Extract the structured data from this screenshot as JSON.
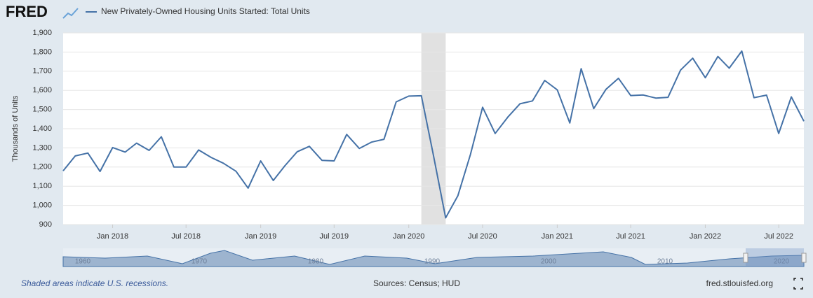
{
  "header": {
    "logo": "FRED"
  },
  "footer": {
    "note": "Shaded areas indicate U.S. recessions.",
    "sources": "Sources: Census; HUD",
    "site": "fred.stlouisfed.org"
  },
  "navigator": {
    "labels": [
      "1960",
      "1970",
      "1980",
      "1990",
      "2000",
      "2010",
      "2020"
    ]
  },
  "chart_data": {
    "type": "line",
    "ylabel": "Thousands of Units",
    "series": [
      {
        "name": "New Privately-Owned Housing Units Started: Total Units",
        "color": "#4572a7",
        "values": [
          1180,
          1258,
          1273,
          1177,
          1302,
          1278,
          1325,
          1287,
          1358,
          1200,
          1200,
          1289,
          1250,
          1220,
          1178,
          1090,
          1232,
          1130,
          1205,
          1280,
          1308,
          1235,
          1232,
          1370,
          1297,
          1330,
          1345,
          1540,
          1570,
          1572,
          1270,
          935,
          1050,
          1265,
          1512,
          1375,
          1460,
          1530,
          1545,
          1652,
          1603,
          1430,
          1713,
          1505,
          1605,
          1663,
          1573,
          1576,
          1560,
          1564,
          1706,
          1768,
          1666,
          1777,
          1716,
          1805,
          1562,
          1575,
          1375,
          1566,
          1439
        ]
      }
    ],
    "x": [
      "2017-09",
      "2017-10",
      "2017-11",
      "2017-12",
      "2018-01",
      "2018-02",
      "2018-03",
      "2018-04",
      "2018-05",
      "2018-06",
      "2018-07",
      "2018-08",
      "2018-09",
      "2018-10",
      "2018-11",
      "2018-12",
      "2019-01",
      "2019-02",
      "2019-03",
      "2019-04",
      "2019-05",
      "2019-06",
      "2019-07",
      "2019-08",
      "2019-09",
      "2019-10",
      "2019-11",
      "2019-12",
      "2020-01",
      "2020-02",
      "2020-03",
      "2020-04",
      "2020-05",
      "2020-06",
      "2020-07",
      "2020-08",
      "2020-09",
      "2020-10",
      "2020-11",
      "2020-12",
      "2021-01",
      "2021-02",
      "2021-03",
      "2021-04",
      "2021-05",
      "2021-06",
      "2021-07",
      "2021-08",
      "2021-09",
      "2021-10",
      "2021-11",
      "2021-12",
      "2022-01",
      "2022-02",
      "2022-03",
      "2022-04",
      "2022-05",
      "2022-06",
      "2022-07",
      "2022-08",
      "2022-09"
    ],
    "xlim": [
      "2017-09",
      "2022-09"
    ],
    "xticks": [
      {
        "value": "2018-01",
        "label": "Jan 2018"
      },
      {
        "value": "2018-07",
        "label": "Jul 2018"
      },
      {
        "value": "2019-01",
        "label": "Jan 2019"
      },
      {
        "value": "2019-07",
        "label": "Jul 2019"
      },
      {
        "value": "2020-01",
        "label": "Jan 2020"
      },
      {
        "value": "2020-07",
        "label": "Jul 2020"
      },
      {
        "value": "2021-01",
        "label": "Jan 2021"
      },
      {
        "value": "2021-07",
        "label": "Jul 2021"
      },
      {
        "value": "2022-01",
        "label": "Jan 2022"
      },
      {
        "value": "2022-07",
        "label": "Jul 2022"
      }
    ],
    "ylim": [
      900,
      1900
    ],
    "yticks": [
      900,
      {
        "value": 1000,
        "label": "1,000"
      },
      {
        "value": 1100,
        "label": "1,100"
      },
      {
        "value": 1200,
        "label": "1,200"
      },
      {
        "value": 1300,
        "label": "1,300"
      },
      {
        "value": 1400,
        "label": "1,400"
      },
      {
        "value": 1500,
        "label": "1,500"
      },
      {
        "value": 1600,
        "label": "1,600"
      },
      {
        "value": 1700,
        "label": "1,700"
      },
      {
        "value": 1800,
        "label": "1,800"
      },
      {
        "value": 1900,
        "label": "1,900"
      }
    ],
    "recessions": [
      [
        "2020-02",
        "2020-04"
      ]
    ]
  }
}
